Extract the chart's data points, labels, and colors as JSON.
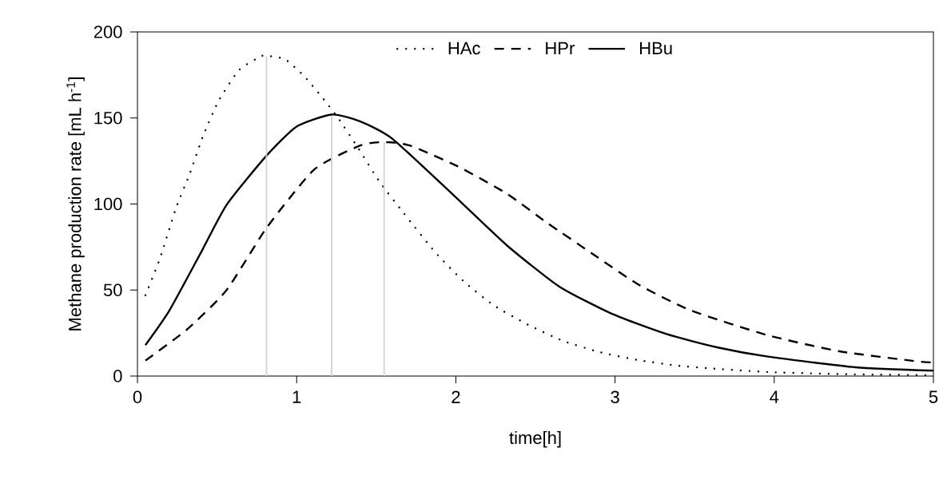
{
  "chart_data": {
    "type": "line",
    "xlabel": "time[h]",
    "ylabel": "Methane production rate [mL h$^{-1}$]",
    "xlim": [
      0,
      5
    ],
    "ylim": [
      0,
      200
    ],
    "xticks": [
      0,
      1,
      2,
      3,
      4,
      5
    ],
    "yticks": [
      0,
      50,
      100,
      150,
      200
    ],
    "legend": "top",
    "series": [
      {
        "name": "HAc",
        "color": "#000000",
        "line_style": "dotted",
        "x": [
          0.05,
          0.14,
          0.24,
          0.33,
          0.41,
          0.51,
          0.64,
          0.78,
          0.83,
          0.93,
          1.05,
          1.16,
          1.26,
          1.39,
          1.52,
          1.67,
          1.87,
          2.05,
          2.24,
          2.45,
          2.67,
          2.9,
          3.14,
          3.38,
          3.62,
          4.0,
          4.5,
          5.0
        ],
        "values": [
          47,
          68,
          97,
          118,
          139,
          160,
          178,
          186,
          186,
          184,
          174,
          162,
          150,
          132,
          113,
          95,
          72,
          55,
          41,
          30,
          20.6,
          14,
          9.4,
          6.2,
          4.3,
          2.2,
          1,
          0.5
        ]
      },
      {
        "name": "HPr",
        "color": "#000000",
        "line_style": "dashed",
        "x": [
          0.05,
          0.31,
          0.56,
          0.81,
          1.11,
          1.4,
          1.55,
          1.71,
          2.01,
          2.32,
          2.58,
          2.85,
          3.15,
          3.48,
          3.96,
          4.41,
          4.91,
          5.0
        ],
        "values": [
          9,
          27,
          50,
          86,
          120,
          134,
          136,
          134,
          122,
          106,
          88.6,
          71.6,
          53,
          38,
          23.7,
          14.4,
          8.4,
          8
        ]
      },
      {
        "name": "HBu",
        "color": "#000000",
        "line_style": "solid",
        "x": [
          0.05,
          0.2,
          0.4,
          0.56,
          0.81,
          1.0,
          1.22,
          1.4,
          1.6,
          1.98,
          2.32,
          2.65,
          2.985,
          3.32,
          3.64,
          3.96,
          4.51,
          5.0
        ],
        "values": [
          18,
          38,
          72,
          99.5,
          128,
          145,
          152,
          148,
          138,
          105.6,
          76,
          52,
          36,
          24.5,
          16.7,
          11.3,
          5.1,
          3.1
        ]
      },
      {
        "color": "#d3d3d3",
        "line_style": "solid",
        "x": [
          0.81,
          0.81
        ],
        "values": [
          0,
          186
        ]
      },
      {
        "color": "#d3d3d3",
        "line_style": "solid",
        "x": [
          1.22,
          1.22
        ],
        "values": [
          0,
          151
        ]
      },
      {
        "color": "#d3d3d3",
        "line_style": "solid",
        "x": [
          1.55,
          1.55
        ],
        "values": [
          0,
          136
        ]
      }
    ]
  }
}
